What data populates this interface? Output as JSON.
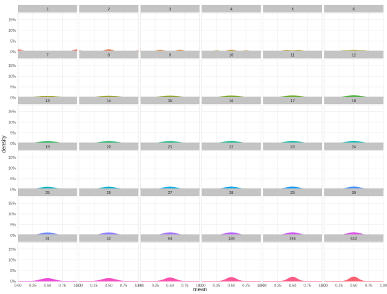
{
  "chart_data": {
    "type": "area",
    "facet_type": "small-multiples density",
    "xlabel": "mean",
    "ylabel": "density",
    "xlim": [
      0,
      1
    ],
    "ylim": [
      0,
      0.18
    ],
    "x_ticks": [
      0,
      0.25,
      0.5,
      0.75,
      1
    ],
    "x_tick_labels": [
      "0.00",
      "0.25",
      "0.50",
      "0.75",
      "1.00"
    ],
    "y_ticks": [
      0,
      0.05,
      0.1,
      0.15
    ],
    "y_tick_labels": [
      "0%",
      "5%",
      "10%",
      "15%"
    ],
    "grid": true,
    "legend": "none",
    "panels": [
      {
        "label": "1",
        "n": 1,
        "color": "#F8766D"
      },
      {
        "label": "2",
        "n": 2,
        "color": "#EA7951"
      },
      {
        "label": "3",
        "n": 3,
        "color": "#D8822C"
      },
      {
        "label": "4",
        "n": 4,
        "color": "#C48A00"
      },
      {
        "label": "5",
        "n": 5,
        "color": "#B39000"
      },
      {
        "label": "6",
        "n": 6,
        "color": "#A39A00"
      },
      {
        "label": "7",
        "n": 7,
        "color": "#9A9600"
      },
      {
        "label": "8",
        "n": 8,
        "color": "#8E9700"
      },
      {
        "label": "9",
        "n": 9,
        "color": "#7F9C00"
      },
      {
        "label": "10",
        "n": 10,
        "color": "#6BA100"
      },
      {
        "label": "11",
        "n": 11,
        "color": "#53A700"
      },
      {
        "label": "12",
        "n": 12,
        "color": "#2EAB17"
      },
      {
        "label": "13",
        "n": 13,
        "color": "#00AE3F"
      },
      {
        "label": "14",
        "n": 14,
        "color": "#00B15C"
      },
      {
        "label": "15",
        "n": 15,
        "color": "#00B474"
      },
      {
        "label": "16",
        "n": 16,
        "color": "#00B68A"
      },
      {
        "label": "17",
        "n": 17,
        "color": "#00B7A0"
      },
      {
        "label": "18",
        "n": 18,
        "color": "#00B7B4"
      },
      {
        "label": "19",
        "n": 19,
        "color": "#00B5C6"
      },
      {
        "label": "20",
        "n": 20,
        "color": "#00B1D7"
      },
      {
        "label": "21",
        "n": 21,
        "color": "#00ABE5"
      },
      {
        "label": "22",
        "n": 22,
        "color": "#00A4F1"
      },
      {
        "label": "23",
        "n": 23,
        "color": "#169BF9"
      },
      {
        "label": "24",
        "n": 24,
        "color": "#4B90FD"
      },
      {
        "label": "25",
        "n": 25,
        "color": "#6B85FF"
      },
      {
        "label": "26",
        "n": 26,
        "color": "#8879FF"
      },
      {
        "label": "27",
        "n": 27,
        "color": "#A26CFF"
      },
      {
        "label": "28",
        "n": 28,
        "color": "#B760FB"
      },
      {
        "label": "29",
        "n": 29,
        "color": "#CB56F4"
      },
      {
        "label": "30",
        "n": 30,
        "color": "#DC4FE8"
      },
      {
        "label": "31",
        "n": 31,
        "color": "#EA4DD8"
      },
      {
        "label": "32",
        "n": 32,
        "color": "#F44FC4"
      },
      {
        "label": "64",
        "n": 64,
        "color": "#FA53AE"
      },
      {
        "label": "128",
        "n": 128,
        "color": "#FC5797"
      },
      {
        "label": "256",
        "n": 256,
        "color": "#FC5B83"
      },
      {
        "label": "512",
        "n": 512,
        "color": "#FB6271"
      }
    ]
  }
}
